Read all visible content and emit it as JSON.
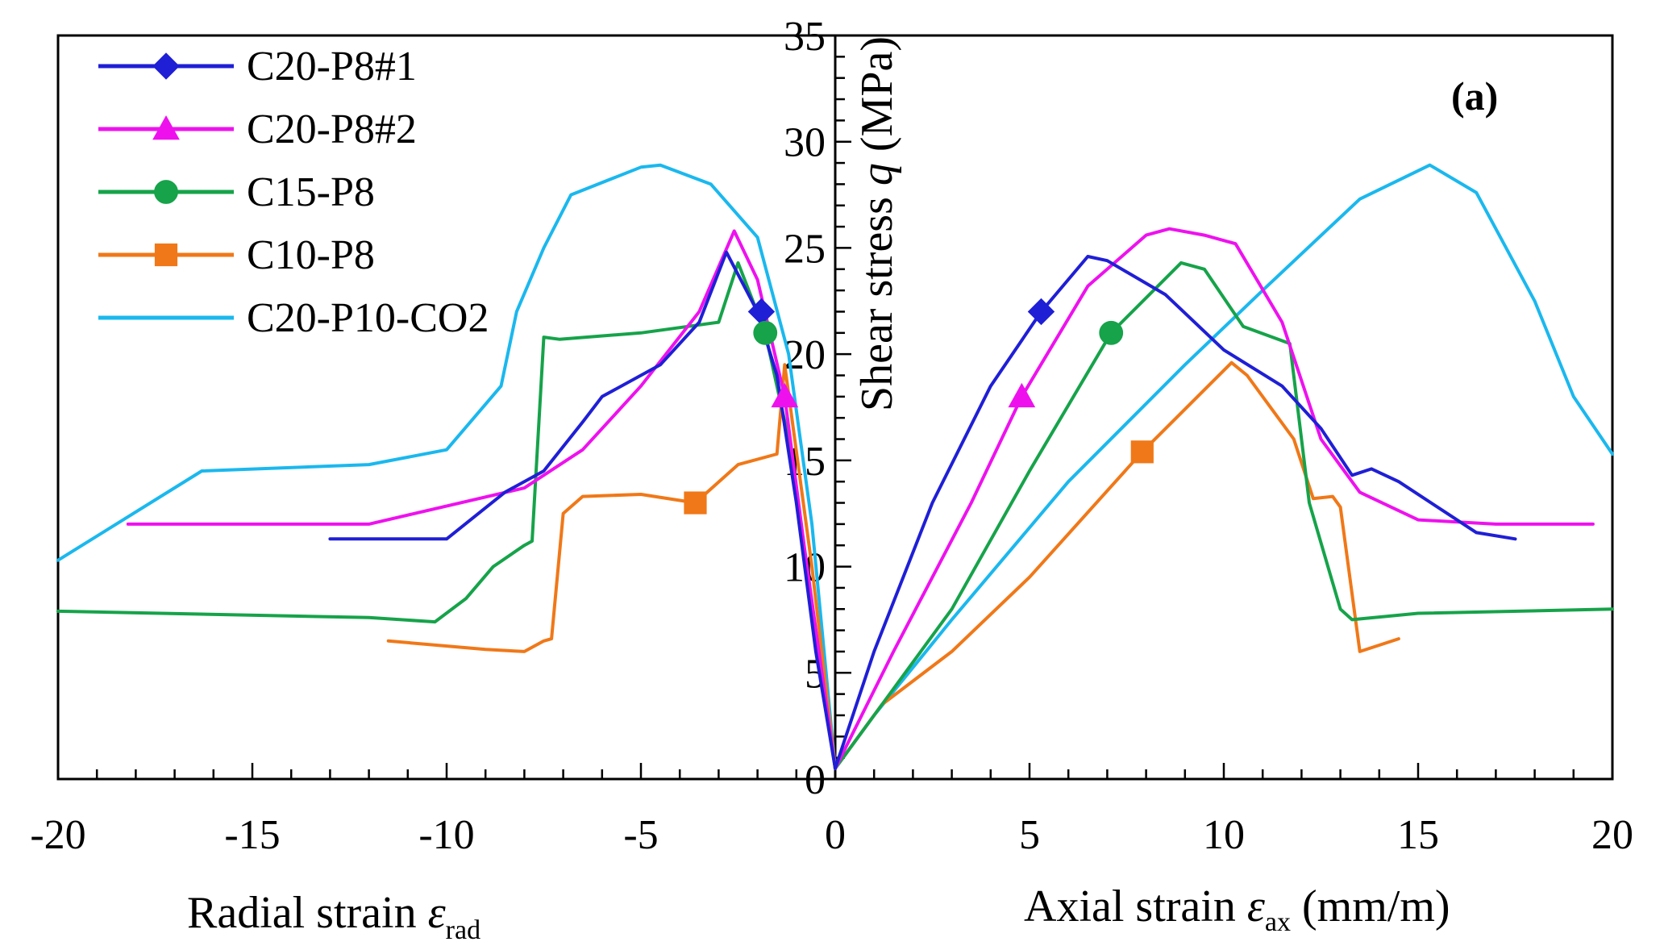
{
  "chart_data": {
    "type": "line",
    "panel_label": "(a)",
    "xlabel_left": {
      "main": "Radial strain ",
      "symbol": "ε",
      "sub": "rad"
    },
    "xlabel_right": {
      "main": "Axial strain ",
      "symbol": "ε",
      "sub": "ax",
      "unit": " (mm/m)"
    },
    "ylabel": {
      "main": "Shear stress ",
      "symbol": "q",
      "unit": " (MPa)"
    },
    "xlim": [
      -20,
      20
    ],
    "ylim": [
      0,
      35
    ],
    "x_ticks": [
      "-20",
      "-15",
      "-10",
      "-5",
      "0",
      "5",
      "10",
      "15",
      "20"
    ],
    "y_ticks": [
      "0",
      "5",
      "10",
      "15",
      "20",
      "25",
      "30",
      "35"
    ],
    "legend": [
      "C20-P8#1",
      "C20-P8#2",
      "C15-P8",
      "C10-P8",
      "C20-P10-CO2"
    ],
    "series": [
      {
        "name": "C20-P8#1",
        "color": "#1f1fd6",
        "marker": "diamond",
        "markers": [
          [
            -1.9,
            22.0
          ],
          [
            5.3,
            22.0
          ]
        ],
        "radial": [
          [
            -13,
            11.3
          ],
          [
            -10,
            11.3
          ],
          [
            -8.5,
            13.5
          ],
          [
            -7.5,
            14.5
          ],
          [
            -6.5,
            16.8
          ],
          [
            -6,
            18.0
          ],
          [
            -4.5,
            19.5
          ],
          [
            -3.5,
            21.5
          ],
          [
            -2.8,
            24.8
          ],
          [
            -2.0,
            22.0
          ],
          [
            -1.5,
            19.0
          ],
          [
            -1,
            13
          ],
          [
            -0.5,
            6
          ],
          [
            0,
            0.5
          ]
        ],
        "axial": [
          [
            0,
            0.5
          ],
          [
            1,
            6
          ],
          [
            2.5,
            13
          ],
          [
            4,
            18.5
          ],
          [
            5.3,
            22
          ],
          [
            6.5,
            24.6
          ],
          [
            7,
            24.4
          ],
          [
            8.5,
            22.8
          ],
          [
            10,
            20.2
          ],
          [
            11.5,
            18.5
          ],
          [
            12.5,
            16.5
          ],
          [
            13.3,
            14.3
          ],
          [
            13.8,
            14.6
          ],
          [
            14.5,
            14
          ],
          [
            16.5,
            11.6
          ],
          [
            17.5,
            11.3
          ]
        ]
      },
      {
        "name": "C20-P8#2",
        "color": "#ee11ee",
        "marker": "triangle",
        "markers": [
          [
            -1.3,
            18.0
          ],
          [
            4.8,
            18.0
          ]
        ],
        "radial": [
          [
            -18.2,
            12.0
          ],
          [
            -12,
            12.0
          ],
          [
            -8,
            13.7
          ],
          [
            -6.5,
            15.5
          ],
          [
            -5,
            18.5
          ],
          [
            -3.5,
            22.0
          ],
          [
            -2.6,
            25.8
          ],
          [
            -2.0,
            23.5
          ],
          [
            -1.3,
            18.0
          ],
          [
            -0.8,
            11
          ],
          [
            0,
            0.5
          ]
        ],
        "axial": [
          [
            0,
            0.5
          ],
          [
            1.5,
            6
          ],
          [
            3.5,
            13
          ],
          [
            4.8,
            18
          ],
          [
            6.5,
            23.2
          ],
          [
            8.0,
            25.6
          ],
          [
            8.6,
            25.9
          ],
          [
            9.5,
            25.6
          ],
          [
            10.3,
            25.2
          ],
          [
            11.5,
            21.5
          ],
          [
            12.5,
            16
          ],
          [
            13.5,
            13.5
          ],
          [
            15,
            12.2
          ],
          [
            17,
            12.0
          ],
          [
            19.5,
            12.0
          ]
        ]
      },
      {
        "name": "C15-P8",
        "color": "#16a34a",
        "marker": "circle",
        "markers": [
          [
            -1.8,
            21.0
          ],
          [
            7.1,
            21.0
          ]
        ],
        "radial": [
          [
            -20,
            7.9
          ],
          [
            -12,
            7.6
          ],
          [
            -10.3,
            7.4
          ],
          [
            -9.5,
            8.5
          ],
          [
            -8.8,
            10
          ],
          [
            -8,
            11
          ],
          [
            -7.8,
            11.2
          ],
          [
            -7.5,
            20.8
          ],
          [
            -7.1,
            20.7
          ],
          [
            -5,
            21.0
          ],
          [
            -3,
            21.5
          ],
          [
            -2.5,
            24.3
          ],
          [
            -1.8,
            21
          ],
          [
            -1.2,
            16
          ],
          [
            -0.6,
            8
          ],
          [
            0,
            0.5
          ]
        ],
        "axial": [
          [
            0,
            0.5
          ],
          [
            1,
            3
          ],
          [
            3,
            8
          ],
          [
            5,
            14.5
          ],
          [
            7.1,
            21
          ],
          [
            8.9,
            24.3
          ],
          [
            9.5,
            24
          ],
          [
            10.5,
            21.3
          ],
          [
            11.4,
            20.7
          ],
          [
            11.7,
            20.5
          ],
          [
            12.2,
            13
          ],
          [
            13.0,
            8.0
          ],
          [
            13.3,
            7.5
          ],
          [
            15,
            7.8
          ],
          [
            20,
            8.0
          ]
        ]
      },
      {
        "name": "C10-P8",
        "color": "#f07818",
        "marker": "square",
        "markers": [
          [
            -3.6,
            13.0
          ],
          [
            7.9,
            15.4
          ]
        ],
        "radial": [
          [
            -11.5,
            6.5
          ],
          [
            -9,
            6.1
          ],
          [
            -8,
            6.0
          ],
          [
            -7.5,
            6.5
          ],
          [
            -7.3,
            6.6
          ],
          [
            -7.0,
            12.5
          ],
          [
            -6.5,
            13.3
          ],
          [
            -5,
            13.4
          ],
          [
            -3.6,
            13.0
          ],
          [
            -2.5,
            14.8
          ],
          [
            -1.5,
            15.3
          ],
          [
            -1.3,
            19.5
          ],
          [
            -0.6,
            10
          ],
          [
            0,
            0.5
          ]
        ],
        "axial": [
          [
            0,
            0.5
          ],
          [
            1.2,
            3.5
          ],
          [
            3,
            6
          ],
          [
            5,
            9.5
          ],
          [
            7.9,
            15.4
          ],
          [
            10.2,
            19.6
          ],
          [
            10.6,
            19.0
          ],
          [
            11.8,
            16.0
          ],
          [
            12.3,
            13.2
          ],
          [
            12.8,
            13.3
          ],
          [
            13.0,
            12.8
          ],
          [
            13.5,
            6.0
          ],
          [
            14.5,
            6.6
          ]
        ]
      },
      {
        "name": "C20-P10-CO2",
        "color": "#1ab8ee",
        "marker": "none",
        "markers": [],
        "radial": [
          [
            -20,
            10.3
          ],
          [
            -16.3,
            14.5
          ],
          [
            -12,
            14.8
          ],
          [
            -10,
            15.5
          ],
          [
            -8.6,
            18.5
          ],
          [
            -8.2,
            22
          ],
          [
            -7.5,
            25
          ],
          [
            -6.8,
            27.5
          ],
          [
            -5,
            28.8
          ],
          [
            -4.5,
            28.9
          ],
          [
            -3.2,
            28.0
          ],
          [
            -2,
            25.5
          ],
          [
            -1.2,
            20
          ],
          [
            -0.6,
            12
          ],
          [
            0,
            0.5
          ]
        ],
        "axial": [
          [
            0,
            0.5
          ],
          [
            1,
            3
          ],
          [
            3,
            7.5
          ],
          [
            6,
            14
          ],
          [
            9,
            19.5
          ],
          [
            11,
            23
          ],
          [
            13.5,
            27.3
          ],
          [
            15.3,
            28.9
          ],
          [
            16.5,
            27.6
          ],
          [
            18,
            22.5
          ],
          [
            19,
            18
          ],
          [
            20,
            15.3
          ]
        ]
      }
    ]
  }
}
